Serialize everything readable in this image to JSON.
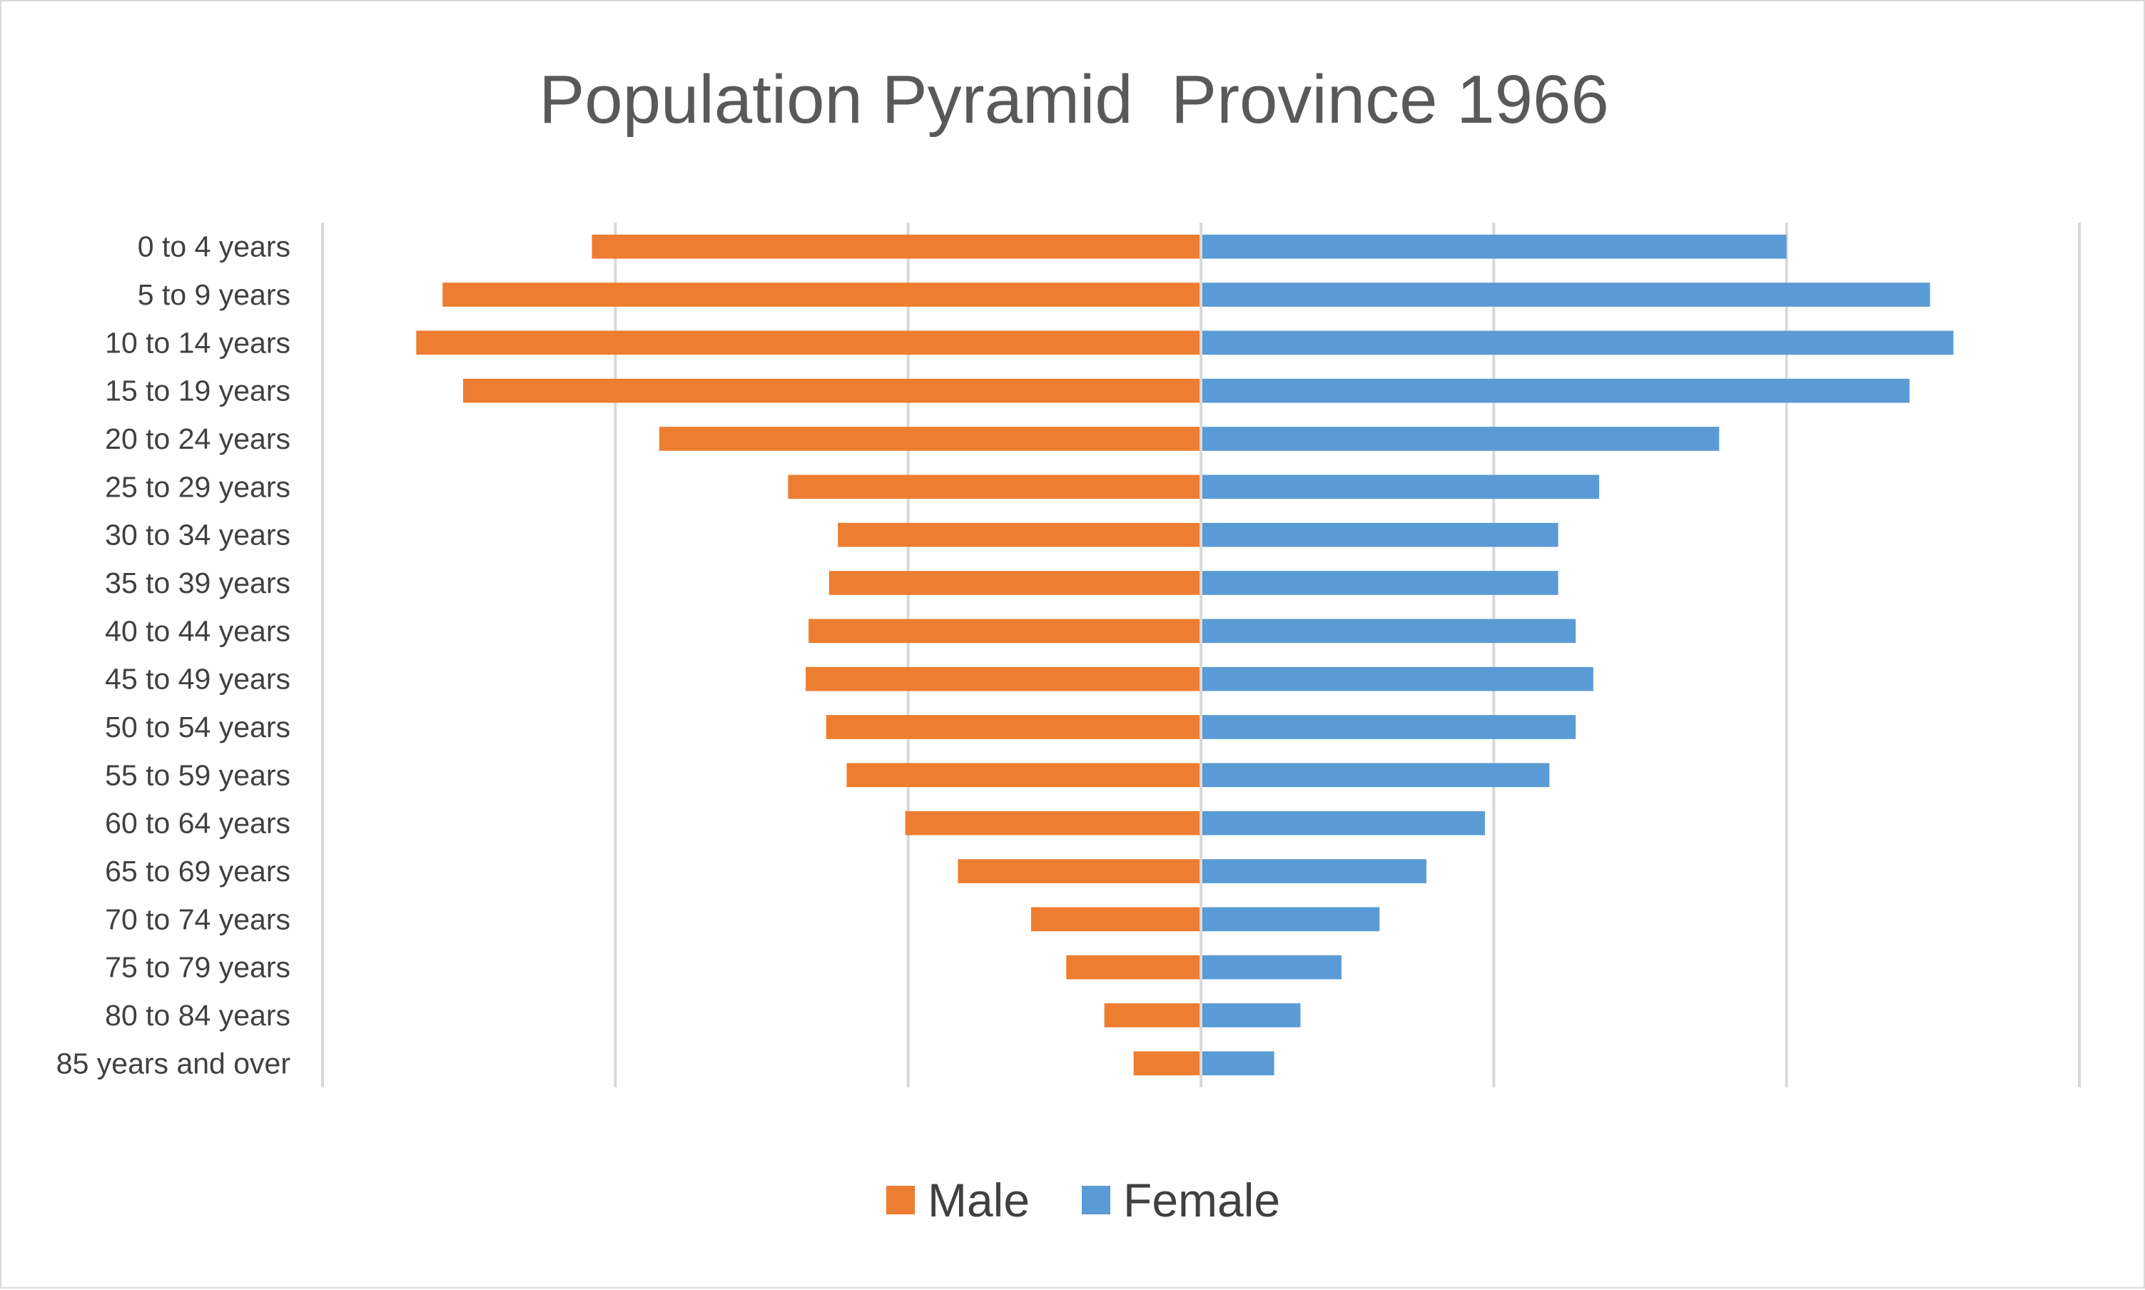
{
  "chart_data": {
    "type": "bar",
    "orientation": "horizontal",
    "title": "Population Pyramid  Province 1966",
    "categories": [
      "0 to 4 years",
      "5 to 9 years",
      "10 to 14 years",
      "15 to 19 years",
      "20 to 24 years",
      "25 to 29 years",
      "30 to 34 years",
      "35 to 39 years",
      "40 to 44 years",
      "45 to 49 years",
      "50 to 54 years",
      "55 to 59 years",
      "60 to 64 years",
      "65 to 69 years",
      "70 to 74 years",
      "75 to 79 years",
      "80 to 84 years",
      "85 years and over"
    ],
    "series": [
      {
        "name": "Male",
        "color": "#ED7D31",
        "values": [
          -208,
          -259,
          -268,
          -252,
          -185,
          -141,
          -124,
          -127,
          -134,
          -135,
          -128,
          -121,
          -101,
          -83,
          -58,
          -46,
          -33,
          -23
        ]
      },
      {
        "name": "Female",
        "color": "#5B9BD5",
        "values": [
          200,
          249,
          257,
          242,
          177,
          136,
          122,
          122,
          128,
          134,
          128,
          119,
          97,
          77,
          61,
          48,
          34,
          25
        ]
      }
    ],
    "xlim": [
      -300,
      300
    ],
    "x_gridline_step": 100,
    "x_tick_labels_shown": false,
    "grid": true,
    "legend_position": "bottom",
    "xlabel": "",
    "ylabel": ""
  }
}
